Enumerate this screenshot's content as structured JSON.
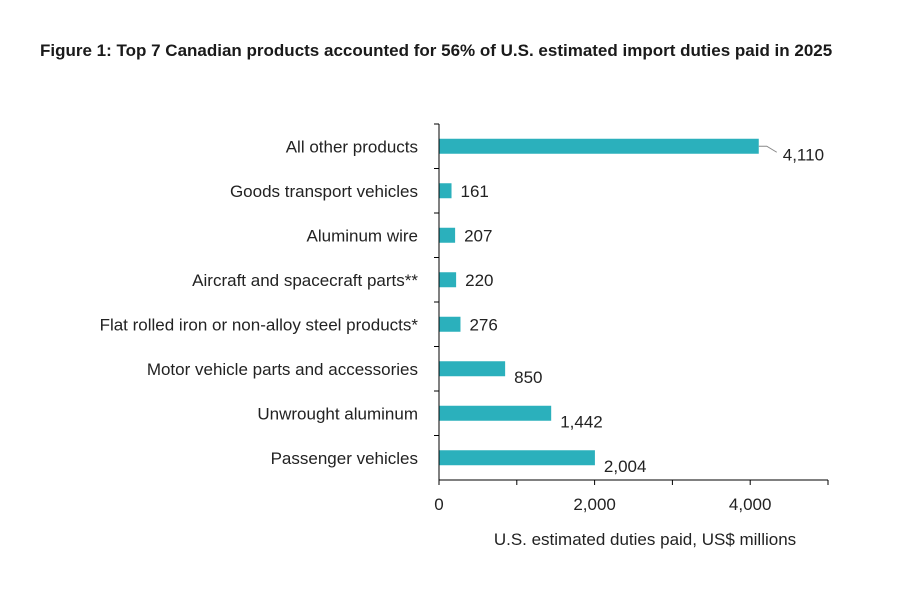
{
  "chart_data": {
    "type": "bar",
    "orientation": "horizontal",
    "title": "Figure 1: Top 7 Canadian products accounted for 56% of U.S. estimated import duties paid in 2025",
    "xlabel": "U.S. estimated duties paid, US$ millions",
    "ylabel": "",
    "categories": [
      "All other products",
      "Goods transport vehicles",
      "Aluminum wire",
      "Aircraft and spacecraft parts**",
      "Flat rolled iron or non-alloy steel products*",
      "Motor vehicle parts and accessories",
      "Unwrought aluminum",
      "Passenger vehicles"
    ],
    "values": [
      4110,
      161,
      207,
      220,
      276,
      850,
      1442,
      2004
    ],
    "value_labels": [
      "4,110",
      "161",
      "207",
      "220",
      "276",
      "850",
      "1,442",
      "2,004"
    ],
    "xlim": [
      0,
      5000
    ],
    "xticks": [
      0,
      2000,
      4000
    ],
    "xtick_labels": [
      "0",
      "2,000",
      "4,000"
    ],
    "grid": false,
    "legend": "none",
    "bar_color": "#2bb0bc"
  }
}
